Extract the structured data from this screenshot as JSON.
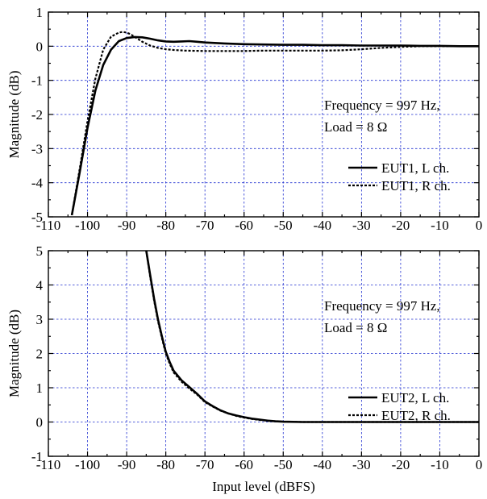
{
  "chart_data": [
    {
      "type": "line",
      "title": "",
      "xlabel": "",
      "ylabel": "Magnitude (dB)",
      "xlim": [
        -110,
        0
      ],
      "ylim": [
        -5,
        1
      ],
      "xticks": [
        -110,
        -100,
        -90,
        -80,
        -70,
        -60,
        -50,
        -40,
        -30,
        -20,
        -10,
        0
      ],
      "yticks": [
        -5,
        -4,
        -3,
        -2,
        -1,
        0,
        1
      ],
      "grid": true,
      "legend_position": "bottom-right",
      "annotation": [
        "Frequency = 997 Hz,",
        "Load = 8 Ω"
      ],
      "series": [
        {
          "name": "EUT1, L ch.",
          "style": "solid",
          "x": [
            -104,
            -102,
            -100,
            -98,
            -96,
            -94,
            -92,
            -90,
            -88,
            -86,
            -84,
            -82,
            -80,
            -78,
            -76,
            -74,
            -72,
            -70,
            -65,
            -60,
            -55,
            -50,
            -45,
            -40,
            -35,
            -30,
            -25,
            -20,
            -15,
            -10,
            -5,
            0
          ],
          "y": [
            -4.95,
            -3.7,
            -2.4,
            -1.3,
            -0.55,
            -0.1,
            0.15,
            0.24,
            0.27,
            0.26,
            0.22,
            0.17,
            0.14,
            0.13,
            0.14,
            0.15,
            0.13,
            0.11,
            0.08,
            0.06,
            0.05,
            0.04,
            0.04,
            0.03,
            0.03,
            0.02,
            0.02,
            0.02,
            0.01,
            0.01,
            0.0,
            0.0
          ]
        },
        {
          "name": "EUT1, R ch.",
          "style": "dashed",
          "x": [
            -104,
            -102,
            -100,
            -98,
            -96,
            -94,
            -92,
            -91,
            -90,
            -89,
            -88,
            -86,
            -84,
            -82,
            -80,
            -78,
            -75,
            -70,
            -65,
            -60,
            -55,
            -50,
            -45,
            -40,
            -35,
            -30,
            -25,
            -20,
            -15,
            -10,
            -5,
            0
          ],
          "y": [
            -4.95,
            -3.6,
            -2.2,
            -0.95,
            -0.1,
            0.28,
            0.4,
            0.42,
            0.4,
            0.35,
            0.28,
            0.13,
            0.02,
            -0.05,
            -0.09,
            -0.11,
            -0.13,
            -0.14,
            -0.14,
            -0.14,
            -0.13,
            -0.13,
            -0.13,
            -0.13,
            -0.12,
            -0.09,
            -0.05,
            -0.02,
            0.0,
            0.0,
            0.0,
            0.0
          ]
        }
      ]
    },
    {
      "type": "line",
      "title": "",
      "xlabel": "Input level (dBFS)",
      "ylabel": "Magnitude (dB)",
      "xlim": [
        -110,
        0
      ],
      "ylim": [
        -1,
        5
      ],
      "xticks": [
        -110,
        -100,
        -90,
        -80,
        -70,
        -60,
        -50,
        -40,
        -30,
        -20,
        -10,
        0
      ],
      "yticks": [
        -1,
        0,
        1,
        2,
        3,
        4,
        5
      ],
      "grid": true,
      "legend_position": "bottom-right",
      "annotation": [
        "Frequency = 997 Hz,",
        "Load = 8 Ω"
      ],
      "series": [
        {
          "name": "EUT2, L ch.",
          "style": "solid",
          "x": [
            -85,
            -84,
            -83,
            -82,
            -81,
            -80,
            -79,
            -78,
            -76,
            -74,
            -72,
            -70,
            -68,
            -66,
            -64,
            -62,
            -60,
            -58,
            -56,
            -54,
            -52,
            -50,
            -45,
            -40,
            -35,
            -30,
            -20,
            -10,
            0
          ],
          "y": [
            5.0,
            4.3,
            3.6,
            3.0,
            2.5,
            2.05,
            1.75,
            1.5,
            1.22,
            1.02,
            0.82,
            0.6,
            0.46,
            0.34,
            0.25,
            0.19,
            0.14,
            0.1,
            0.07,
            0.04,
            0.02,
            0.01,
            0.0,
            0.0,
            0.0,
            0.0,
            0.0,
            0.0,
            0.0
          ]
        },
        {
          "name": "EUT2, R ch.",
          "style": "dashed",
          "x": [
            -85,
            -84,
            -83,
            -82,
            -81,
            -80,
            -79,
            -78,
            -76,
            -74,
            -72,
            -70,
            -68,
            -66,
            -64,
            -62,
            -60,
            -58,
            -56,
            -54,
            -52,
            -50,
            -45,
            -40,
            -35,
            -30,
            -20,
            -10,
            0
          ],
          "y": [
            5.0,
            4.25,
            3.55,
            2.95,
            2.45,
            2.0,
            1.7,
            1.45,
            1.18,
            0.98,
            0.8,
            0.58,
            0.45,
            0.33,
            0.25,
            0.18,
            0.13,
            0.09,
            0.06,
            0.04,
            0.02,
            0.01,
            0.0,
            0.0,
            0.0,
            0.0,
            0.0,
            0.0,
            0.0
          ]
        }
      ]
    }
  ]
}
